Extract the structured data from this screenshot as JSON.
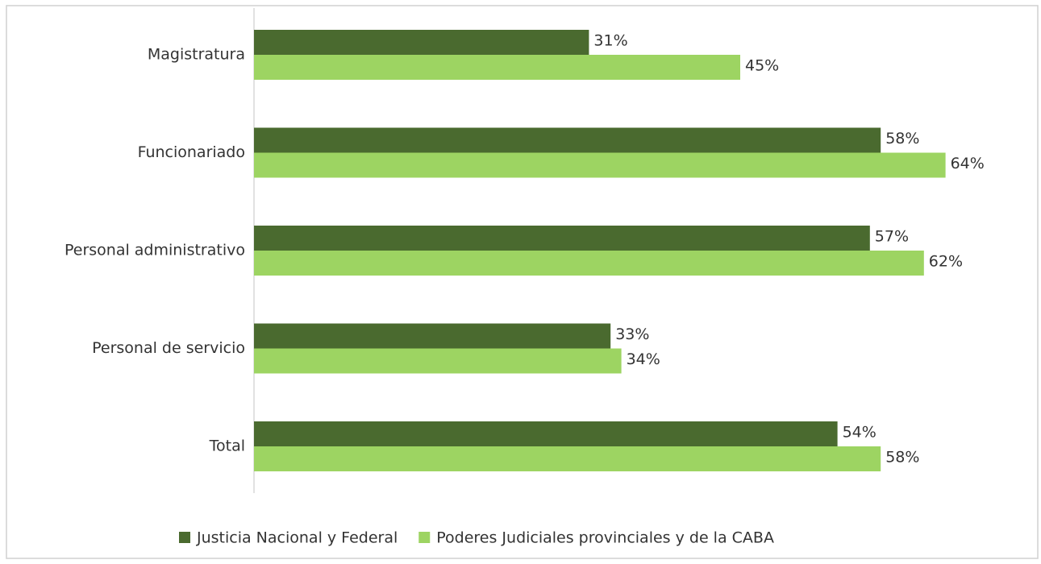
{
  "chart_data": {
    "type": "bar",
    "orientation": "horizontal",
    "categories": [
      "Magistratura",
      "Funcionariado",
      "Personal administrativo",
      "Personal de servicio",
      "Total"
    ],
    "series": [
      {
        "name": "Justicia Nacional y Federal",
        "color": "#4a6a2f",
        "values": [
          31,
          58,
          57,
          33,
          54
        ],
        "value_labels": [
          "31%",
          "58%",
          "57%",
          "33%",
          "54%"
        ]
      },
      {
        "name": "Poderes Judiciales provinciales y de la CABA",
        "color": "#9dd462",
        "values": [
          45,
          64,
          62,
          34,
          58
        ],
        "value_labels": [
          "45%",
          "64%",
          "62%",
          "34%",
          "58%"
        ]
      }
    ],
    "legend": "bottom"
  }
}
